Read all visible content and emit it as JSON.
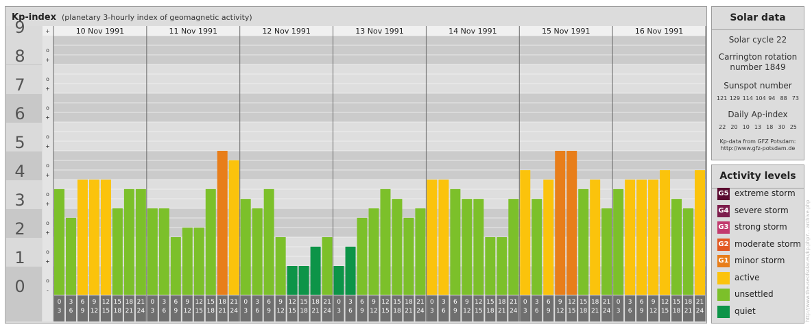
{
  "header": {
    "title": "Kp-index",
    "subtitle": "(planetary 3-hourly index of geomagnetic activity)"
  },
  "chart_data": {
    "type": "bar",
    "title": "Kp-index",
    "subtitle": "(planetary 3-hourly index of geomagnetic activity)",
    "ylim": [
      0,
      9
    ],
    "y_ticks": [
      "0",
      "1",
      "2",
      "3",
      "4",
      "5",
      "6",
      "7",
      "8",
      "9"
    ],
    "y_minor_ticks": [
      "+",
      "o",
      "-"
    ],
    "dates": [
      "10 Nov 1991",
      "11 Nov 1991",
      "12 Nov 1991",
      "13 Nov 1991",
      "14 Nov 1991",
      "15 Nov 1991",
      "16 Nov 1991"
    ],
    "intervals": [
      [
        "0",
        "3"
      ],
      [
        "3",
        "6"
      ],
      [
        "6",
        "9"
      ],
      [
        "9",
        "12"
      ],
      [
        "12",
        "15"
      ],
      [
        "15",
        "18"
      ],
      [
        "18",
        "21"
      ],
      [
        "21",
        "24"
      ]
    ],
    "values": [
      [
        3.67,
        2.67,
        4.0,
        4.0,
        4.0,
        3.0,
        3.67,
        3.67
      ],
      [
        3.0,
        3.0,
        2.0,
        2.33,
        2.33,
        3.67,
        5.0,
        4.67
      ],
      [
        3.33,
        3.0,
        3.67,
        2.0,
        1.0,
        1.0,
        1.67,
        2.0
      ],
      [
        1.0,
        1.67,
        2.67,
        3.0,
        3.67,
        3.33,
        2.67,
        3.0
      ],
      [
        4.0,
        4.0,
        3.67,
        3.33,
        3.33,
        2.0,
        2.0,
        3.33
      ],
      [
        4.33,
        3.33,
        4.0,
        5.0,
        5.0,
        3.67,
        4.0,
        3.0
      ],
      [
        3.67,
        4.0,
        4.0,
        4.0,
        4.33,
        3.33,
        3.0,
        4.33
      ]
    ],
    "colors": {
      "quiet": "#0d9448",
      "unsettled": "#7cc02a",
      "active": "#fbc30c",
      "G1": "#e87e1a",
      "G2": "#e25822",
      "G3": "#c23a6e",
      "G4": "#7d1d4c",
      "G5": "#5a0a2f"
    },
    "grid": true
  },
  "solar": {
    "title": "Solar data",
    "cycle": "Solar cycle 22",
    "carrington_line1": "Carrington rotation",
    "carrington_line2": "number 1849",
    "sunspot_title": "Sunspot number",
    "sunspot_values": "121 129 114 104 94  88  73",
    "ap_title": "Daily Ap-index",
    "ap_values": "22  20  10  13  18  30  25",
    "credit_line1": "Kp-data from GFZ Potsdam:",
    "credit_line2": "http://www.gfz-potsdam.de"
  },
  "activity": {
    "title": "Activity levels",
    "items": [
      {
        "badge": "G5",
        "label": "extreme storm",
        "color": "#5a0a2f"
      },
      {
        "badge": "G4",
        "label": "severe storm",
        "color": "#7d1d4c"
      },
      {
        "badge": "G3",
        "label": "strong storm",
        "color": "#c23a6e"
      },
      {
        "badge": "G2",
        "label": "moderate storm",
        "color": "#e25822"
      },
      {
        "badge": "G1",
        "label": "minor storm",
        "color": "#e87e1a"
      },
      {
        "badge": "",
        "label": "active",
        "color": "#fbc30c"
      },
      {
        "badge": "",
        "label": "unsettled",
        "color": "#7cc02a"
      },
      {
        "badge": "",
        "label": "quiet",
        "color": "#0d9448"
      }
    ]
  },
  "watermark": "http://www.theuseofsolar.eu/kp.php?... archive.php"
}
